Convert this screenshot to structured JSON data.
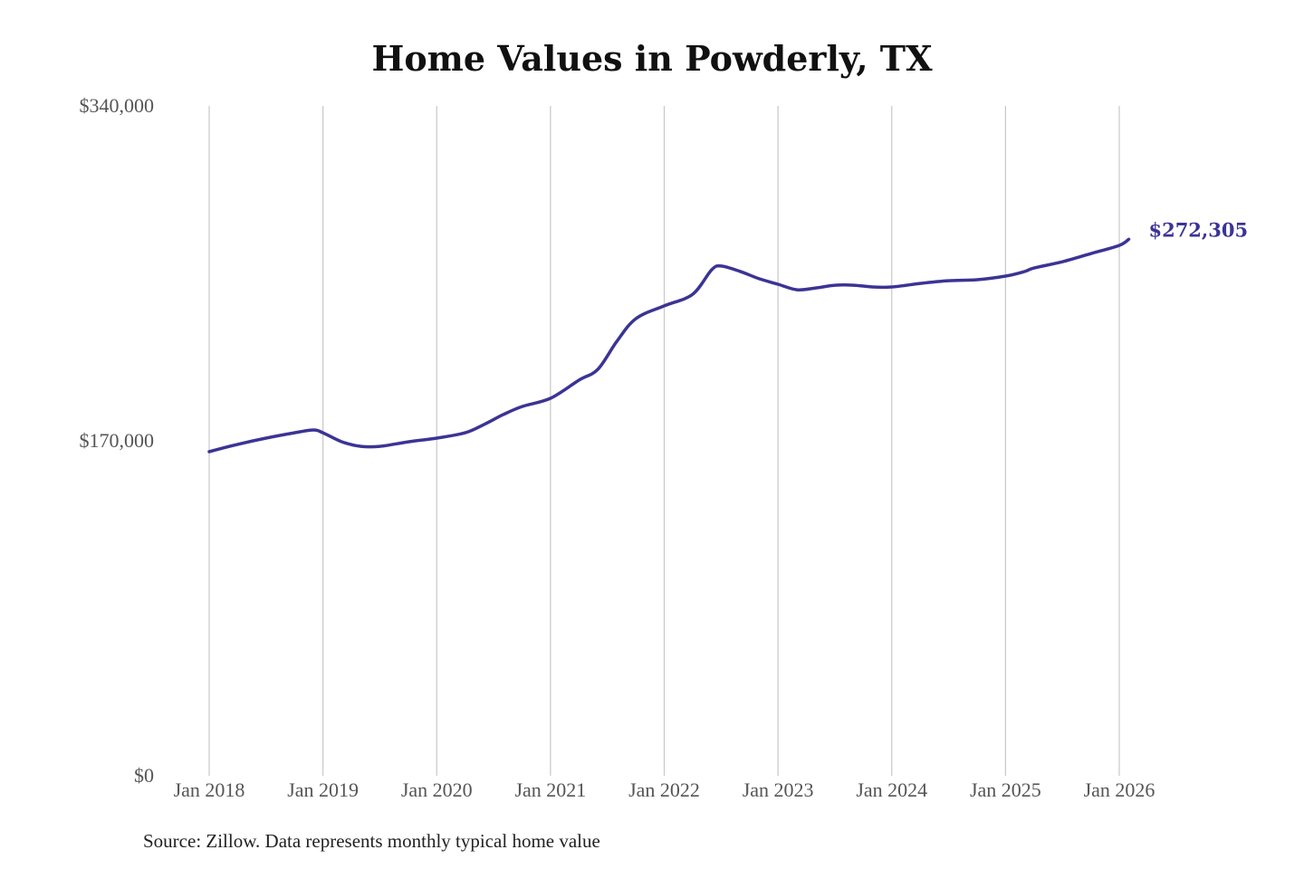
{
  "chart_data": {
    "type": "line",
    "title": "Home Values in Powderly, TX",
    "xlabel": "",
    "ylabel": "",
    "ylim": [
      0,
      340000
    ],
    "y_ticks": [
      {
        "value": 0,
        "label": "$0"
      },
      {
        "value": 170000,
        "label": "$170,000"
      },
      {
        "value": 340000,
        "label": "$340,000"
      }
    ],
    "x_ticks": [
      {
        "date": "2018-01",
        "label": "Jan 2018"
      },
      {
        "date": "2019-01",
        "label": "Jan 2019"
      },
      {
        "date": "2020-01",
        "label": "Jan 2020"
      },
      {
        "date": "2021-01",
        "label": "Jan 2021"
      },
      {
        "date": "2022-01",
        "label": "Jan 2022"
      },
      {
        "date": "2023-01",
        "label": "Jan 2023"
      },
      {
        "date": "2024-01",
        "label": "Jan 2024"
      },
      {
        "date": "2025-01",
        "label": "Jan 2025"
      },
      {
        "date": "2026-01",
        "label": "Jan 2026"
      }
    ],
    "grid": "vertical",
    "line_color": "#3b3495",
    "end_label": "$272,305",
    "series": [
      {
        "points": [
          [
            "2018-01",
            164500
          ],
          [
            "2018-04",
            168200
          ],
          [
            "2018-07",
            171400
          ],
          [
            "2018-10",
            174100
          ],
          [
            "2018-12",
            175500
          ],
          [
            "2019-01",
            174100
          ],
          [
            "2019-03",
            169500
          ],
          [
            "2019-05",
            167200
          ],
          [
            "2019-07",
            167200
          ],
          [
            "2019-10",
            169500
          ],
          [
            "2020-01",
            171400
          ],
          [
            "2020-04",
            174100
          ],
          [
            "2020-06",
            178300
          ],
          [
            "2020-08",
            183300
          ],
          [
            "2020-10",
            187400
          ],
          [
            "2021-01",
            191600
          ],
          [
            "2021-04",
            200800
          ],
          [
            "2021-06",
            206300
          ],
          [
            "2021-08",
            220500
          ],
          [
            "2021-10",
            232000
          ],
          [
            "2022-01",
            238500
          ],
          [
            "2022-04",
            244400
          ],
          [
            "2022-06",
            256800
          ],
          [
            "2022-07",
            258700
          ],
          [
            "2022-09",
            256000
          ],
          [
            "2022-11",
            252300
          ],
          [
            "2023-01",
            249500
          ],
          [
            "2023-03",
            246700
          ],
          [
            "2023-05",
            247600
          ],
          [
            "2023-07",
            249000
          ],
          [
            "2023-09",
            249000
          ],
          [
            "2023-11",
            248100
          ],
          [
            "2024-01",
            248100
          ],
          [
            "2024-04",
            249900
          ],
          [
            "2024-07",
            251300
          ],
          [
            "2024-10",
            251800
          ],
          [
            "2025-01",
            253600
          ],
          [
            "2025-03",
            255900
          ],
          [
            "2025-04",
            257700
          ],
          [
            "2025-07",
            260900
          ],
          [
            "2025-10",
            265000
          ],
          [
            "2026-01",
            269200
          ],
          [
            "2026-02",
            272305
          ]
        ]
      }
    ]
  },
  "footer": {
    "source": "Source: Zillow. Data represents monthly typical home value"
  }
}
